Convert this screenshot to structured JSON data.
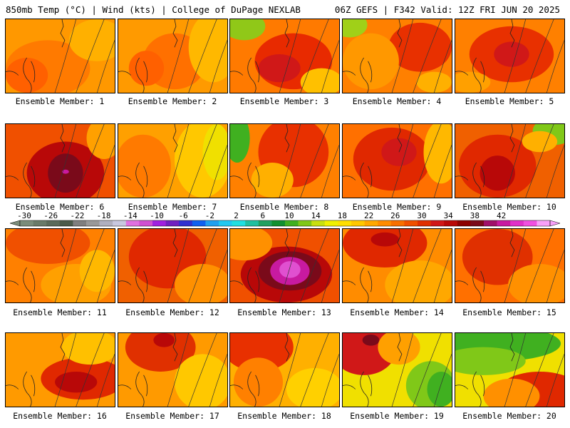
{
  "header": {
    "left_title": "850mb Temp (°C) | Wind (kts) | College of DuPage NEXLAB",
    "right_title": "06Z GEFS | F342 Valid: 12Z FRI JUN 20 2025"
  },
  "colorbar": {
    "tick_labels": [
      "-30",
      "-26",
      "-22",
      "-18",
      "-14",
      "-10",
      "-6",
      "-2",
      "2",
      "6",
      "10",
      "14",
      "18",
      "22",
      "26",
      "30",
      "34",
      "38",
      "42"
    ],
    "colors": [
      "#7a8c7a",
      "#697a69",
      "#5a6a5a",
      "#4a5a4a",
      "#7f7f7f",
      "#999999",
      "#b0b0c0",
      "#c8c8e0",
      "#e070e0",
      "#d050d0",
      "#a020e0",
      "#7020c0",
      "#3030d0",
      "#1060f0",
      "#20a0f0",
      "#20c8f0",
      "#20e0e0",
      "#20c0a0",
      "#20a060",
      "#109030",
      "#40b020",
      "#80c818",
      "#c8e010",
      "#f0f000",
      "#ffe000",
      "#ffc800",
      "#ffa800",
      "#ff8c00",
      "#f87000",
      "#f05000",
      "#e03000",
      "#d01818",
      "#b80808",
      "#8c0000",
      "#7a0a1a",
      "#a0106a",
      "#c81aa0",
      "#e030c8",
      "#f050e0",
      "#f8a0f8"
    ]
  },
  "members": [
    {
      "label": "Ensemble Member: 1"
    },
    {
      "label": "Ensemble Member: 2"
    },
    {
      "label": "Ensemble Member: 3"
    },
    {
      "label": "Ensemble Member: 4"
    },
    {
      "label": "Ensemble Member: 5"
    },
    {
      "label": "Ensemble Member: 6"
    },
    {
      "label": "Ensemble Member: 7"
    },
    {
      "label": "Ensemble Member: 8"
    },
    {
      "label": "Ensemble Member: 9"
    },
    {
      "label": "Ensemble Member: 10"
    },
    {
      "label": "Ensemble Member: 11"
    },
    {
      "label": "Ensemble Member: 12"
    },
    {
      "label": "Ensemble Member: 13"
    },
    {
      "label": "Ensemble Member: 14"
    },
    {
      "label": "Ensemble Member: 15"
    },
    {
      "label": "Ensemble Member: 16"
    },
    {
      "label": "Ensemble Member: 17"
    },
    {
      "label": "Ensemble Member: 18"
    },
    {
      "label": "Ensemble Member: 19"
    },
    {
      "label": "Ensemble Member: 20"
    }
  ]
}
